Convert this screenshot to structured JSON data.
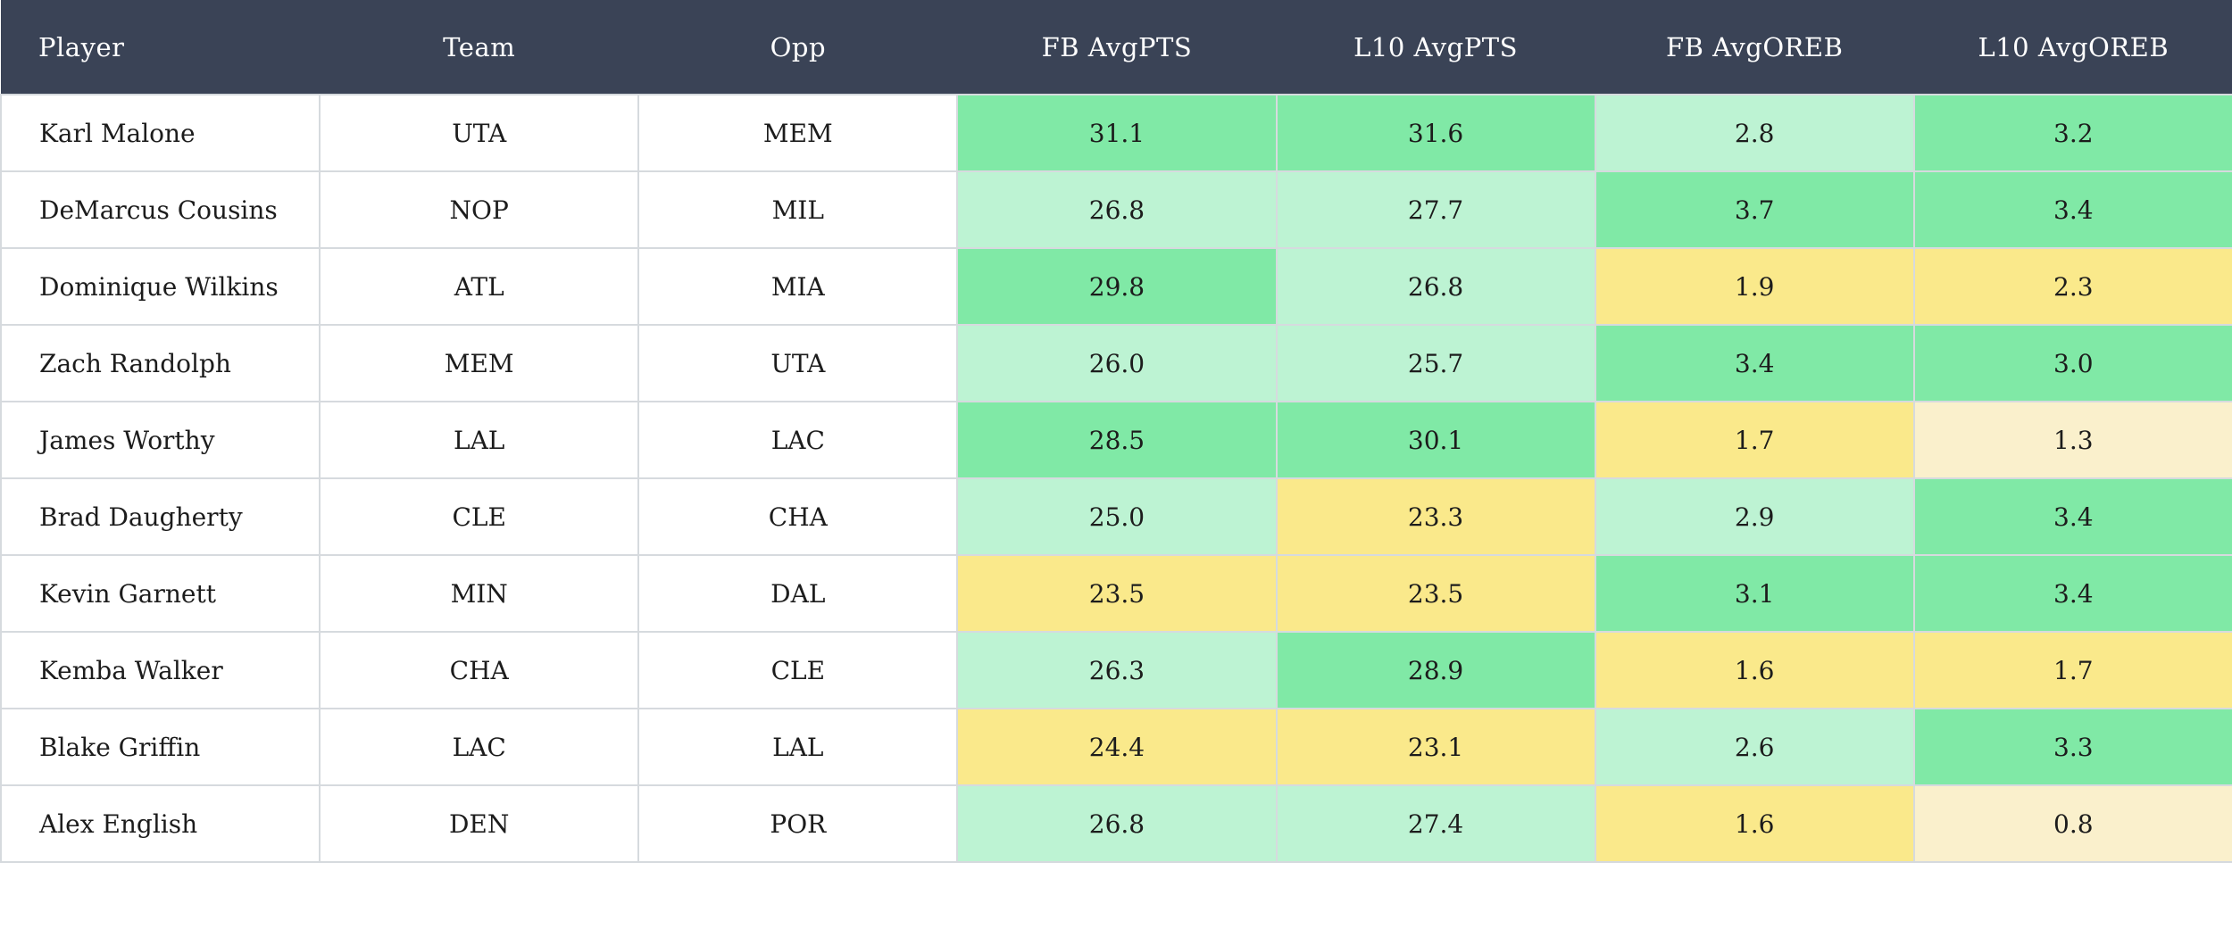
{
  "palette": {
    "header_bg": "#3a4356",
    "header_text": "#ffffff",
    "border": "#d6dade",
    "text": "#1c1c1c",
    "row_bg": "#ffffff",
    "green": "#80e9a6",
    "lightGreen": "#bdf3d3",
    "yellow": "#fae98b",
    "paleYellow": "#faf0cc"
  },
  "table": {
    "columns": [
      {
        "label": "Player"
      },
      {
        "label": "Team"
      },
      {
        "label": "Opp"
      },
      {
        "label": "FB AvgPTS"
      },
      {
        "label": "L10 AvgPTS"
      },
      {
        "label": "FB AvgOREB"
      },
      {
        "label": "L10 AvgOREB"
      }
    ],
    "rows": [
      {
        "player": "Karl Malone",
        "team": "UTA",
        "opp": "MEM",
        "fb_pts": {
          "v": "31.1",
          "c": "green"
        },
        "l10_pts": {
          "v": "31.6",
          "c": "green"
        },
        "fb_oreb": {
          "v": "2.8",
          "c": "lightGreen"
        },
        "l10_oreb": {
          "v": "3.2",
          "c": "green"
        }
      },
      {
        "player": "DeMarcus Cousins",
        "team": "NOP",
        "opp": "MIL",
        "fb_pts": {
          "v": "26.8",
          "c": "lightGreen"
        },
        "l10_pts": {
          "v": "27.7",
          "c": "lightGreen"
        },
        "fb_oreb": {
          "v": "3.7",
          "c": "green"
        },
        "l10_oreb": {
          "v": "3.4",
          "c": "green"
        }
      },
      {
        "player": "Dominique Wilkins",
        "team": "ATL",
        "opp": "MIA",
        "fb_pts": {
          "v": "29.8",
          "c": "green"
        },
        "l10_pts": {
          "v": "26.8",
          "c": "lightGreen"
        },
        "fb_oreb": {
          "v": "1.9",
          "c": "yellow"
        },
        "l10_oreb": {
          "v": "2.3",
          "c": "yellow"
        }
      },
      {
        "player": "Zach Randolph",
        "team": "MEM",
        "opp": "UTA",
        "fb_pts": {
          "v": "26.0",
          "c": "lightGreen"
        },
        "l10_pts": {
          "v": "25.7",
          "c": "lightGreen"
        },
        "fb_oreb": {
          "v": "3.4",
          "c": "green"
        },
        "l10_oreb": {
          "v": "3.0",
          "c": "green"
        }
      },
      {
        "player": "James Worthy",
        "team": "LAL",
        "opp": "LAC",
        "fb_pts": {
          "v": "28.5",
          "c": "green"
        },
        "l10_pts": {
          "v": "30.1",
          "c": "green"
        },
        "fb_oreb": {
          "v": "1.7",
          "c": "yellow"
        },
        "l10_oreb": {
          "v": "1.3",
          "c": "paleYellow"
        }
      },
      {
        "player": "Brad Daugherty",
        "team": "CLE",
        "opp": "CHA",
        "fb_pts": {
          "v": "25.0",
          "c": "lightGreen"
        },
        "l10_pts": {
          "v": "23.3",
          "c": "yellow"
        },
        "fb_oreb": {
          "v": "2.9",
          "c": "lightGreen"
        },
        "l10_oreb": {
          "v": "3.4",
          "c": "green"
        }
      },
      {
        "player": "Kevin Garnett",
        "team": "MIN",
        "opp": "DAL",
        "fb_pts": {
          "v": "23.5",
          "c": "yellow"
        },
        "l10_pts": {
          "v": "23.5",
          "c": "yellow"
        },
        "fb_oreb": {
          "v": "3.1",
          "c": "green"
        },
        "l10_oreb": {
          "v": "3.4",
          "c": "green"
        }
      },
      {
        "player": "Kemba Walker",
        "team": "CHA",
        "opp": "CLE",
        "fb_pts": {
          "v": "26.3",
          "c": "lightGreen"
        },
        "l10_pts": {
          "v": "28.9",
          "c": "green"
        },
        "fb_oreb": {
          "v": "1.6",
          "c": "yellow"
        },
        "l10_oreb": {
          "v": "1.7",
          "c": "yellow"
        }
      },
      {
        "player": "Blake Griffin",
        "team": "LAC",
        "opp": "LAL",
        "fb_pts": {
          "v": "24.4",
          "c": "yellow"
        },
        "l10_pts": {
          "v": "23.1",
          "c": "yellow"
        },
        "fb_oreb": {
          "v": "2.6",
          "c": "lightGreen"
        },
        "l10_oreb": {
          "v": "3.3",
          "c": "green"
        }
      },
      {
        "player": "Alex English",
        "team": "DEN",
        "opp": "POR",
        "fb_pts": {
          "v": "26.8",
          "c": "lightGreen"
        },
        "l10_pts": {
          "v": "27.4",
          "c": "lightGreen"
        },
        "fb_oreb": {
          "v": "1.6",
          "c": "yellow"
        },
        "l10_oreb": {
          "v": "0.8",
          "c": "paleYellow"
        }
      }
    ]
  }
}
